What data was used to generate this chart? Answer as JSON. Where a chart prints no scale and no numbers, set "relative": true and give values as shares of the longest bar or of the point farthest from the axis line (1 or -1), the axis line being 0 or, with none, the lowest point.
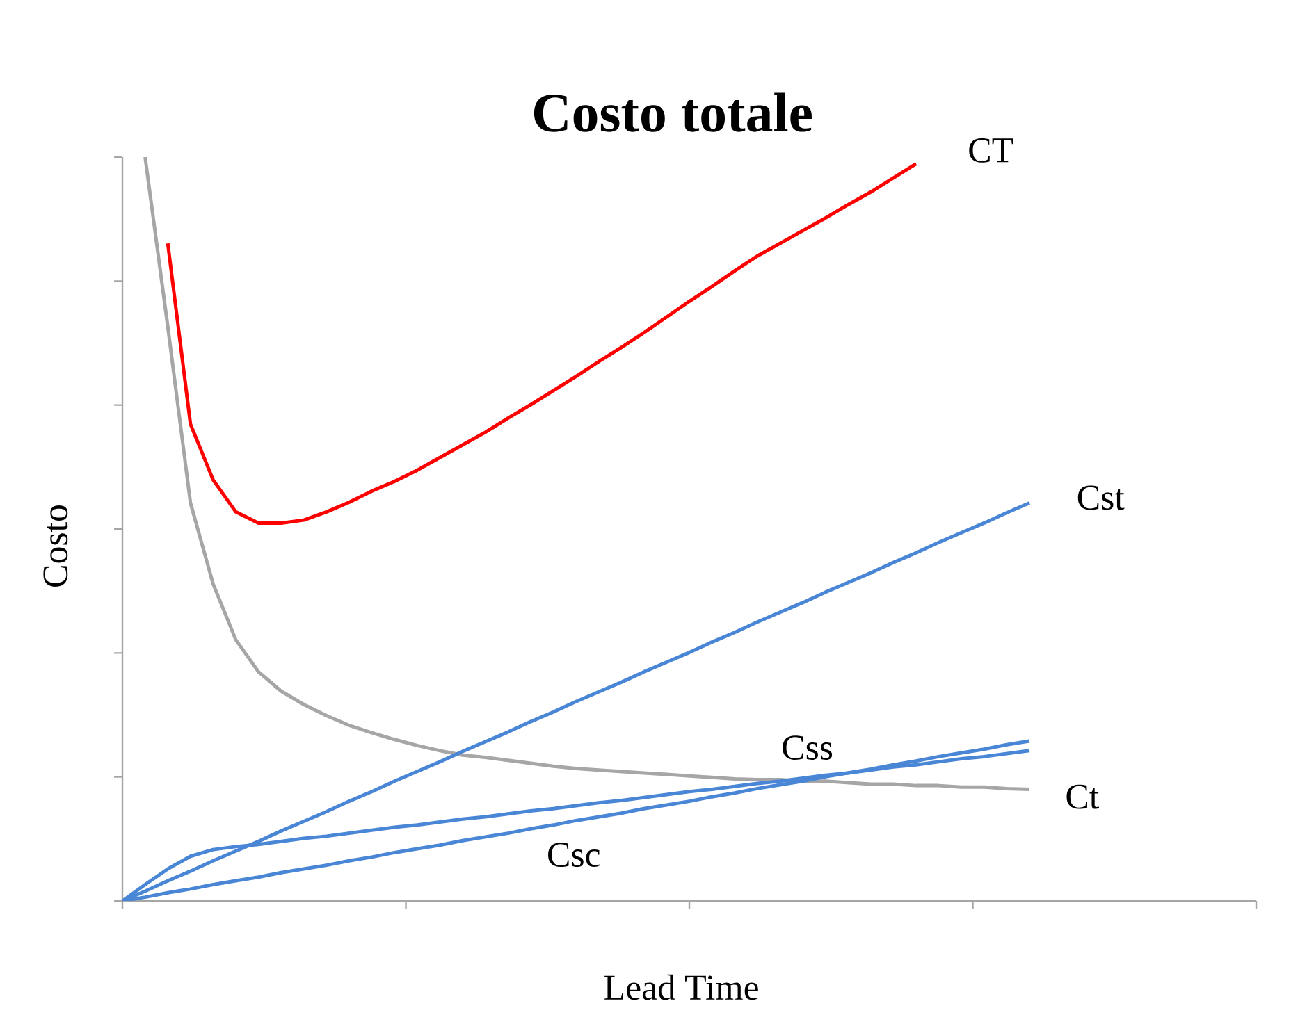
{
  "chart_data": {
    "type": "line",
    "title": "Costo totale",
    "xlabel": "Lead Time",
    "ylabel": "Costo",
    "relative": true,
    "marker": "none",
    "line_style": "solid",
    "categories": [
      null,
      null,
      null,
      null,
      null,
      null,
      null,
      null,
      null,
      null,
      null,
      null,
      null,
      null,
      null,
      null,
      null,
      null,
      null,
      null,
      null,
      null,
      null,
      null,
      null,
      null,
      null,
      null,
      null,
      null,
      null,
      null,
      null,
      null,
      null,
      null,
      null,
      null,
      null,
      null,
      null
    ],
    "series": [
      {
        "name": "CT",
        "color": "#ff0000",
        "values": [
          null,
          null,
          0.884,
          0.641,
          0.566,
          0.523,
          0.508,
          0.508,
          0.512,
          0.523,
          0.536,
          0.551,
          0.564,
          0.579,
          0.596,
          0.613,
          0.63,
          0.649,
          0.667,
          0.686,
          0.705,
          0.725,
          0.744,
          0.764,
          0.785,
          0.806,
          0.826,
          0.847,
          0.867,
          0.884,
          0.901,
          0.918,
          0.936,
          0.953,
          0.972,
          0.991,
          null,
          null,
          null,
          null,
          null
        ]
      },
      {
        "name": "Ct",
        "color": "#a6a6a6",
        "values": [
          null,
          1.0,
          0.772,
          0.535,
          0.426,
          0.351,
          0.308,
          0.282,
          0.264,
          0.249,
          0.236,
          0.226,
          0.217,
          0.209,
          0.202,
          0.196,
          0.193,
          0.189,
          0.185,
          0.181,
          0.178,
          0.176,
          0.174,
          0.172,
          0.17,
          0.168,
          0.166,
          0.164,
          0.163,
          0.163,
          0.161,
          0.161,
          0.159,
          0.157,
          0.157,
          0.155,
          0.155,
          0.153,
          0.153,
          0.151,
          0.15
        ]
      },
      {
        "name": "Cst",
        "color": "#4a86d6",
        "values": [
          0,
          0.013,
          0.027,
          0.04,
          0.054,
          0.067,
          0.08,
          0.094,
          0.107,
          0.12,
          0.134,
          0.147,
          0.161,
          0.174,
          0.187,
          0.201,
          0.214,
          0.227,
          0.241,
          0.254,
          0.268,
          0.281,
          0.294,
          0.308,
          0.321,
          0.334,
          0.348,
          0.361,
          0.375,
          0.388,
          0.401,
          0.415,
          0.428,
          0.441,
          0.455,
          0.468,
          0.482,
          0.495,
          0.508,
          0.522,
          0.535
        ]
      },
      {
        "name": "Css",
        "color": "#4a86d6",
        "values": [
          0,
          0.022,
          0.043,
          0.06,
          0.069,
          0.073,
          0.076,
          0.08,
          0.084,
          0.087,
          0.091,
          0.095,
          0.099,
          0.102,
          0.106,
          0.11,
          0.113,
          0.117,
          0.121,
          0.124,
          0.128,
          0.132,
          0.135,
          0.139,
          0.143,
          0.147,
          0.15,
          0.154,
          0.158,
          0.161,
          0.165,
          0.169,
          0.172,
          0.176,
          0.18,
          0.183,
          0.187,
          0.191,
          0.194,
          0.198,
          0.202
        ]
      },
      {
        "name": "Csc",
        "color": "#4a86d6",
        "values": [
          0,
          0.005,
          0.011,
          0.016,
          0.022,
          0.027,
          0.032,
          0.038,
          0.043,
          0.048,
          0.054,
          0.059,
          0.065,
          0.07,
          0.075,
          0.081,
          0.086,
          0.091,
          0.097,
          0.102,
          0.108,
          0.113,
          0.118,
          0.124,
          0.129,
          0.134,
          0.14,
          0.145,
          0.151,
          0.156,
          0.161,
          0.167,
          0.172,
          0.177,
          0.183,
          0.188,
          0.194,
          0.199,
          0.204,
          0.21,
          0.215
        ]
      }
    ]
  }
}
